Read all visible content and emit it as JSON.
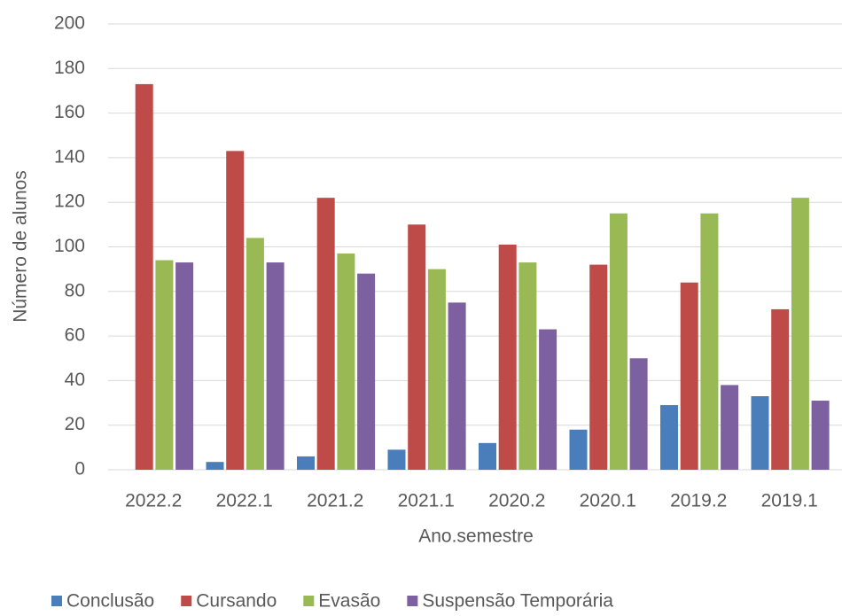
{
  "chart_data": {
    "type": "bar",
    "categories": [
      "2022.2",
      "2022.1",
      "2021.2",
      "2021.1",
      "2020.2",
      "2020.1",
      "2019.2",
      "2019.1"
    ],
    "series": [
      {
        "name": "Conclusão",
        "color": "#4a7ebb",
        "values": [
          0,
          3.5,
          6,
          9,
          12,
          18,
          29,
          33
        ]
      },
      {
        "name": "Cursando",
        "color": "#be4b48",
        "values": [
          173,
          143,
          122,
          110,
          101,
          92,
          84,
          72
        ]
      },
      {
        "name": "Evasão",
        "color": "#98b954",
        "values": [
          94,
          104,
          97,
          90,
          93,
          115,
          115,
          122
        ]
      },
      {
        "name": "Suspensão Temporária",
        "color": "#7d60a0",
        "values": [
          93,
          93,
          88,
          75,
          63,
          50,
          38,
          31
        ]
      }
    ],
    "xlabel": "Ano.semestre",
    "ylabel": "Número de alunos",
    "ylim": [
      0,
      200
    ],
    "yticks": [
      0,
      20,
      40,
      60,
      80,
      100,
      120,
      140,
      160,
      180,
      200
    ],
    "grid": true,
    "legend": "bottom"
  }
}
